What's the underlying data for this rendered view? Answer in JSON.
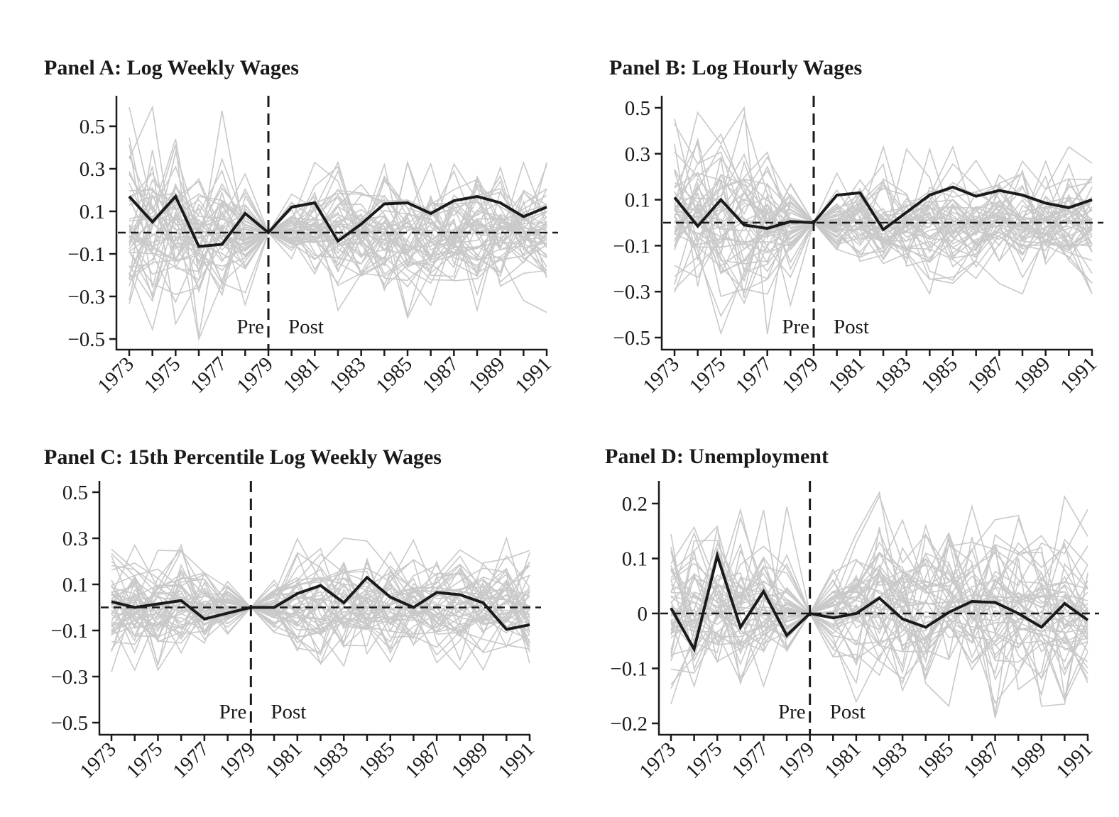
{
  "chart_data": [
    {
      "type": "line",
      "title": "Panel A: Log Weekly Wages",
      "x": [
        1973,
        1974,
        1975,
        1976,
        1977,
        1978,
        1979,
        1980,
        1981,
        1982,
        1983,
        1984,
        1985,
        1986,
        1987,
        1988,
        1989,
        1990,
        1991
      ],
      "xticks": [
        "1973",
        "1975",
        "1977",
        "1979",
        "1981",
        "1983",
        "1985",
        "1987",
        "1989",
        "1991"
      ],
      "yticks": [
        "0.5",
        "0.3",
        "0.1",
        "−0.1",
        "−0.3",
        "−0.5"
      ],
      "ytick_values": [
        0.5,
        0.3,
        0.1,
        -0.1,
        -0.3,
        -0.5
      ],
      "ylim": [
        -0.55,
        0.62
      ],
      "treatment_year": 1979,
      "pre_label": "Pre",
      "post_label": "Post",
      "series": [
        {
          "values": [
            0.17,
            0.05,
            0.17,
            -0.065,
            -0.055,
            0.09,
            0.0,
            0.12,
            0.14,
            -0.04,
            0.04,
            0.135,
            0.14,
            0.09,
            0.15,
            0.17,
            0.14,
            0.075,
            0.12
          ]
        }
      ],
      "placebo_spread": {
        "pre_max": 0.59,
        "pre_min": -0.5,
        "post_max": 0.33,
        "post_min": -0.4
      },
      "color": "#1a1a1a",
      "placebo_color": "#c9c9c9"
    },
    {
      "type": "line",
      "title": "Panel B: Log Hourly Wages",
      "x": [
        1973,
        1974,
        1975,
        1976,
        1977,
        1978,
        1979,
        1980,
        1981,
        1982,
        1983,
        1984,
        1985,
        1986,
        1987,
        1988,
        1989,
        1990,
        1991
      ],
      "xticks": [
        "1973",
        "1975",
        "1977",
        "1979",
        "1981",
        "1983",
        "1985",
        "1987",
        "1989",
        "1991"
      ],
      "yticks": [
        "0.5",
        "0.3",
        "0.1",
        "−0.1",
        "−0.3",
        "−0.5"
      ],
      "ytick_values": [
        0.5,
        0.3,
        0.1,
        -0.1,
        -0.3,
        -0.5
      ],
      "ylim": [
        -0.55,
        0.55
      ],
      "treatment_year": 1979,
      "pre_label": "Pre",
      "post_label": "Post",
      "series": [
        {
          "values": [
            0.11,
            -0.015,
            0.1,
            -0.01,
            -0.025,
            0.005,
            0.0,
            0.12,
            0.13,
            -0.03,
            0.045,
            0.12,
            0.155,
            0.115,
            0.14,
            0.12,
            0.085,
            0.065,
            0.1
          ]
        }
      ],
      "placebo_spread": {
        "pre_max": 0.5,
        "pre_min": -0.5,
        "post_max": 0.33,
        "post_min": -0.31
      },
      "color": "#1a1a1a",
      "placebo_color": "#c9c9c9"
    },
    {
      "type": "line",
      "title": "Panel C: 15th Percentile Log Weekly Wages",
      "x": [
        1973,
        1974,
        1975,
        1976,
        1977,
        1978,
        1979,
        1980,
        1981,
        1982,
        1983,
        1984,
        1985,
        1986,
        1987,
        1988,
        1989,
        1990,
        1991
      ],
      "xticks": [
        "1973",
        "1975",
        "1977",
        "1979",
        "1981",
        "1983",
        "1985",
        "1987",
        "1989",
        "1991"
      ],
      "yticks": [
        "0.5",
        "0.3",
        "0.1",
        "−0.1",
        "−0.3",
        "−0.5"
      ],
      "ytick_values": [
        0.5,
        0.3,
        0.1,
        -0.1,
        -0.3,
        -0.5
      ],
      "ylim": [
        -0.55,
        0.55
      ],
      "treatment_year": 1979,
      "pre_label": "Pre",
      "post_label": "Post",
      "series": [
        {
          "values": [
            0.025,
            0.0,
            0.015,
            0.03,
            -0.05,
            -0.025,
            0.0,
            0.0,
            0.06,
            0.095,
            0.02,
            0.13,
            0.045,
            0.0,
            0.065,
            0.055,
            0.02,
            -0.095,
            -0.075
          ]
        }
      ],
      "placebo_spread": {
        "pre_max": 0.27,
        "pre_min": -0.28,
        "post_max": 0.31,
        "post_min": -0.27
      },
      "color": "#1a1a1a",
      "placebo_color": "#c9c9c9"
    },
    {
      "type": "line",
      "title": "Panel D: Unemployment",
      "x": [
        1973,
        1974,
        1975,
        1976,
        1977,
        1978,
        1979,
        1980,
        1981,
        1982,
        1983,
        1984,
        1985,
        1986,
        1987,
        1988,
        1989,
        1990,
        1991
      ],
      "xticks": [
        "1973",
        "1975",
        "1977",
        "1979",
        "1981",
        "1983",
        "1985",
        "1987",
        "1989",
        "1991"
      ],
      "yticks": [
        "0.2",
        "0.1",
        "0",
        "−0.1",
        "−0.2"
      ],
      "ytick_values": [
        0.2,
        0.1,
        0.0,
        -0.1,
        -0.2
      ],
      "ylim": [
        -0.22,
        0.24
      ],
      "treatment_year": 1979,
      "pre_label": "Pre",
      "post_label": "Post",
      "series": [
        {
          "values": [
            0.01,
            -0.065,
            0.105,
            -0.025,
            0.04,
            -0.04,
            0.0,
            -0.008,
            0.0,
            0.028,
            -0.01,
            -0.025,
            0.002,
            0.022,
            0.02,
            0.0,
            -0.025,
            0.018,
            -0.012
          ]
        }
      ],
      "placebo_spread": {
        "pre_max": 0.2,
        "pre_min": -0.17,
        "post_max": 0.22,
        "post_min": -0.19
      },
      "color": "#1a1a1a",
      "placebo_color": "#c9c9c9"
    }
  ]
}
